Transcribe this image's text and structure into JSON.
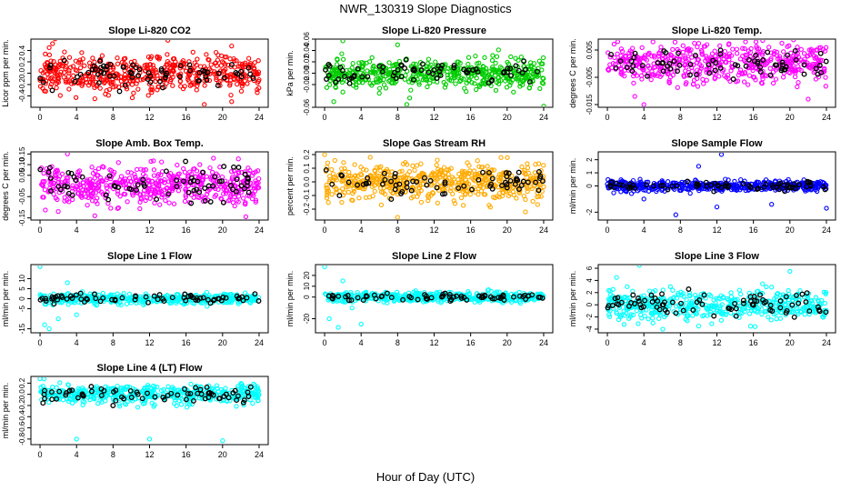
{
  "main_title": "NWR_130319  Slope Diagnostics",
  "xlabel": "Hour of Day (UTC)",
  "chart_data": [
    {
      "type": "scatter",
      "title": "Slope Li-820 CO2",
      "ylabel": "Licor ppm per min.",
      "color": "#ff0000",
      "ylim": [
        -0.6,
        0.6
      ],
      "yticks": [
        "-0.4",
        "-0.2",
        "0.0",
        "0.2",
        "0.4"
      ],
      "ytick_values": [
        -0.4,
        -0.2,
        0.0,
        0.2,
        0.4
      ],
      "xlim": [
        -1,
        25
      ],
      "xticks": [
        0,
        4,
        8,
        12,
        16,
        20,
        24
      ],
      "spread": 0.17,
      "n": 520,
      "black_n": 70,
      "seed": 11,
      "outliers": [
        [
          14,
          0.58
        ],
        [
          18,
          -0.55
        ],
        [
          1,
          0.45
        ],
        [
          6,
          -0.45
        ],
        [
          21,
          -0.5
        ]
      ]
    },
    {
      "type": "scatter",
      "title": "Slope Li-820 Pressure",
      "ylabel": "kPa per min.",
      "color": "#00cc00",
      "ylim": [
        -0.06,
        0.06
      ],
      "yticks": [
        "-0.06",
        "-0.02",
        "0.00",
        "0.02",
        "0.04",
        "0.06"
      ],
      "ytick_values": [
        -0.06,
        -0.02,
        0.0,
        0.02,
        0.04,
        0.06
      ],
      "xlim": [
        -1,
        25
      ],
      "xticks": [
        0,
        4,
        8,
        12,
        16,
        20,
        24
      ],
      "spread": 0.012,
      "n": 520,
      "black_n": 70,
      "seed": 23,
      "outliers": [
        [
          2,
          0.057
        ],
        [
          24,
          -0.058
        ],
        [
          8,
          0.05
        ],
        [
          9,
          -0.055
        ],
        [
          1,
          -0.05
        ]
      ]
    },
    {
      "type": "scatter",
      "title": "Slope Li-820 Temp.",
      "ylabel": "degrees C per min.",
      "color": "#ff00ff",
      "ylim": [
        -0.016,
        0.009
      ],
      "yticks": [
        "-0.015",
        "-0.005",
        "0.005"
      ],
      "ytick_values": [
        -0.015,
        -0.005,
        0.005
      ],
      "xlim": [
        -1,
        25
      ],
      "xticks": [
        0,
        4,
        8,
        12,
        16,
        20,
        24
      ],
      "spread": 0.0035,
      "n": 520,
      "black_n": 70,
      "seed": 37,
      "outliers": [
        [
          5,
          0.008
        ],
        [
          4,
          -0.015
        ],
        [
          22,
          -0.013
        ],
        [
          3,
          -0.012
        ]
      ]
    },
    {
      "type": "scatter",
      "title": "Slope Amb. Box Temp.",
      "ylabel": "degrees C per min.",
      "color": "#ff00ff",
      "ylim": [
        -0.16,
        0.16
      ],
      "yticks": [
        "-0.15",
        "-0.05",
        "0.05",
        "0.10",
        "0.15"
      ],
      "ytick_values": [
        -0.15,
        -0.05,
        0.05,
        0.1,
        0.15
      ],
      "xlim": [
        -1,
        25
      ],
      "xticks": [
        0,
        4,
        8,
        12,
        16,
        20,
        24
      ],
      "spread": 0.045,
      "n": 520,
      "black_n": 70,
      "seed": 41,
      "outliers": [
        [
          3,
          0.15
        ],
        [
          6,
          -0.14
        ],
        [
          19,
          0.13
        ],
        [
          2,
          -0.12
        ]
      ]
    },
    {
      "type": "scatter",
      "title": "Slope Gas Stream RH",
      "ylabel": "percent per min.",
      "color": "#ffaa00",
      "ylim": [
        -0.28,
        0.22
      ],
      "yticks": [
        "-0.2",
        "-0.1",
        "0.0",
        "0.1",
        "0.2"
      ],
      "ytick_values": [
        -0.2,
        -0.1,
        0.0,
        0.1,
        0.2
      ],
      "xlim": [
        -1,
        25
      ],
      "xticks": [
        0,
        4,
        8,
        12,
        16,
        20,
        24
      ],
      "spread": 0.065,
      "n": 560,
      "black_n": 70,
      "seed": 53,
      "outliers": [
        [
          8,
          -0.26
        ],
        [
          22,
          -0.22
        ],
        [
          0,
          0.2
        ],
        [
          5,
          0.18
        ]
      ]
    },
    {
      "type": "scatter",
      "title": "Slope Sample Flow",
      "ylabel": "ml/min per min.",
      "color": "#0000ff",
      "ylim": [
        -2.6,
        2.6
      ],
      "yticks": [
        "-2",
        "0",
        "1",
        "2"
      ],
      "ytick_values": [
        -2,
        0,
        1,
        2
      ],
      "xlim": [
        -1,
        25
      ],
      "xticks": [
        0,
        4,
        8,
        12,
        16,
        20,
        24
      ],
      "spread": 0.18,
      "n": 500,
      "black_n": 70,
      "seed": 67,
      "outliers": [
        [
          7.5,
          -2.2
        ],
        [
          12.5,
          2.4
        ],
        [
          12,
          -1.6
        ],
        [
          24,
          -1.7
        ],
        [
          10,
          1.5
        ],
        [
          4,
          -1.0
        ],
        [
          18,
          -1.4
        ]
      ]
    },
    {
      "type": "scatter",
      "title": "Slope Line 1 Flow",
      "ylabel": "ml/min per min.",
      "color": "#00ffff",
      "ylim": [
        -17,
        17
      ],
      "yticks": [
        "-15",
        "-5",
        "0",
        "5",
        "10"
      ],
      "ytick_values": [
        -15,
        -5,
        0,
        5,
        10
      ],
      "xlim": [
        -1,
        25
      ],
      "xticks": [
        0,
        4,
        8,
        12,
        16,
        20,
        24
      ],
      "spread": 1.2,
      "n": 460,
      "black_n": 70,
      "seed": 71,
      "outliers": [
        [
          0,
          16
        ],
        [
          2,
          -10
        ],
        [
          1,
          -15
        ],
        [
          3,
          8
        ],
        [
          4,
          -8
        ],
        [
          0.5,
          -13
        ]
      ]
    },
    {
      "type": "scatter",
      "title": "Slope Line 2 Flow",
      "ylabel": "ml/min per min.",
      "color": "#00ffff",
      "ylim": [
        -33,
        30
      ],
      "yticks": [
        "-20",
        "0",
        "10",
        "20"
      ],
      "ytick_values": [
        -20,
        0,
        10,
        20
      ],
      "xlim": [
        -1,
        25
      ],
      "xticks": [
        0,
        4,
        8,
        12,
        16,
        20,
        24
      ],
      "spread": 2.2,
      "n": 460,
      "black_n": 70,
      "seed": 79,
      "outliers": [
        [
          0,
          28
        ],
        [
          0.5,
          -20
        ],
        [
          1.5,
          -28
        ],
        [
          4,
          -25
        ],
        [
          2,
          15
        ],
        [
          3,
          -10
        ]
      ]
    },
    {
      "type": "scatter",
      "title": "Slope Line 3 Flow",
      "ylabel": "ml/min per min.",
      "color": "#00ffff",
      "ylim": [
        -4.6,
        6.6
      ],
      "yticks": [
        "-4",
        "-2",
        "0",
        "2",
        "4",
        "6"
      ],
      "ytick_values": [
        -4,
        -2,
        0,
        2,
        4,
        6
      ],
      "xlim": [
        -1,
        25
      ],
      "xticks": [
        0,
        4,
        8,
        12,
        16,
        20,
        24
      ],
      "spread": 1.2,
      "n": 500,
      "black_n": 80,
      "seed": 83,
      "outliers": [
        [
          3.5,
          6.5
        ],
        [
          20,
          5.5
        ],
        [
          5,
          -3
        ],
        [
          10,
          -3.5
        ],
        [
          1,
          4.5
        ]
      ]
    },
    {
      "type": "scatter",
      "title": "Slope Line 4 (LT) Flow",
      "ylabel": "ml/min per min.",
      "color": "#00ffff",
      "ylim": [
        -0.9,
        0.32
      ],
      "yticks": [
        "-0.8",
        "-0.6",
        "-0.4",
        "-0.2",
        "0.0",
        "0.2"
      ],
      "ytick_values": [
        -0.8,
        -0.6,
        -0.4,
        -0.2,
        0.0,
        0.2
      ],
      "xlim": [
        -1,
        25
      ],
      "xticks": [
        0,
        4,
        8,
        12,
        16,
        20,
        24
      ],
      "spread": 0.09,
      "n": 480,
      "black_n": 70,
      "seed": 97,
      "outliers": [
        [
          4,
          -0.8
        ],
        [
          12,
          -0.8
        ],
        [
          20,
          -0.83
        ],
        [
          0,
          0.28
        ]
      ]
    }
  ]
}
